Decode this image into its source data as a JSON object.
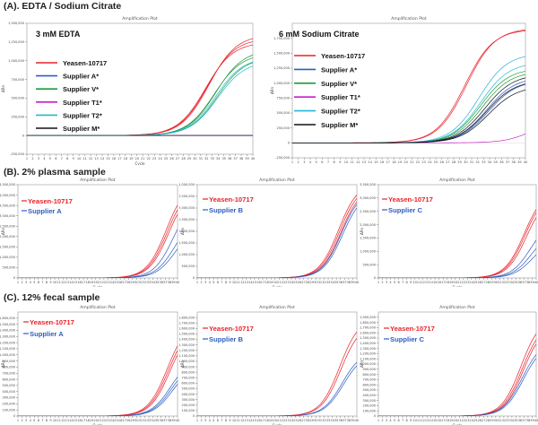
{
  "sections": {
    "a": "(A). EDTA / Sodium Citrate",
    "b": "(B). 2% plasma sample",
    "c": "(C). 12% fecal sample"
  },
  "chart_data": [
    {
      "id": "p1",
      "type": "line",
      "title": "Amplification Plot",
      "condition": "3 mM EDTA",
      "xlabel": "Cycle",
      "ylabel": "ΔRn",
      "xlim": [
        1,
        40
      ],
      "ylim": [
        -250000,
        1500000
      ],
      "xticks": [
        1,
        2,
        3,
        4,
        5,
        6,
        7,
        8,
        9,
        10,
        11,
        12,
        13,
        14,
        15,
        16,
        17,
        18,
        19,
        20,
        21,
        22,
        23,
        24,
        25,
        26,
        27,
        28,
        29,
        30,
        31,
        32,
        33,
        34,
        35,
        36,
        37,
        38,
        39,
        40
      ],
      "yticks": [
        -250000,
        0,
        250000,
        500000,
        750000,
        1000000,
        1250000,
        1500000
      ],
      "ytick_labels": [
        "-250,000",
        "0",
        "250,000",
        "500,000",
        "750,000",
        "1,000,000",
        "1,250,000",
        "1,500,000"
      ],
      "legend": "top-left",
      "series": [
        {
          "name": "Yeasen-10717",
          "color": "#e8212a",
          "plateaus": [
            1250000,
            1300000,
            1350000
          ],
          "ct": 27.8
        },
        {
          "name": "Supplier A*",
          "color": "#2e5dbf",
          "plateaus": [
            0
          ],
          "ct": 45
        },
        {
          "name": "Supplier V*",
          "color": "#1e9a3c",
          "plateaus": [
            1100000,
            1150000,
            1050000
          ],
          "ct": 29.3
        },
        {
          "name": "Supplier T1*",
          "color": "#c21fc6",
          "plateaus": [
            0
          ],
          "ct": 45
        },
        {
          "name": "Supplier T2*",
          "color": "#25b7d3",
          "plateaus": [
            1050000,
            1000000
          ],
          "ct": 29.6
        },
        {
          "name": "Supplier  M*",
          "color": "#111111",
          "plateaus": [
            0
          ],
          "ct": 45
        }
      ]
    },
    {
      "id": "p2",
      "type": "line",
      "title": "Amplification Plot",
      "condition": "6 mM  Sodium Citrate",
      "xlabel": "Cycle",
      "ylabel": "ΔRn",
      "xlim": [
        1,
        40
      ],
      "ylim": [
        -250000,
        2000000
      ],
      "xticks": [
        1,
        2,
        3,
        4,
        5,
        6,
        7,
        8,
        9,
        10,
        11,
        12,
        13,
        14,
        15,
        16,
        17,
        18,
        19,
        20,
        21,
        22,
        23,
        24,
        25,
        26,
        27,
        28,
        29,
        30,
        31,
        32,
        33,
        34,
        35,
        36,
        37,
        38,
        39,
        40
      ],
      "yticks": [
        -250000,
        0,
        250000,
        500000,
        750000,
        1000000,
        1250000,
        1500000,
        1750000
      ],
      "ytick_labels": [
        "-250,000",
        "0",
        "250,000",
        "500,000",
        "750,000",
        "1,000,000",
        "1,250,000",
        "1,500,000",
        "1,750,000"
      ],
      "legend": "top-left",
      "series": [
        {
          "name": "Yeasen-10717",
          "color": "#e8212a",
          "plateaus": [
            1900000,
            1920000
          ],
          "ct": 25.8
        },
        {
          "name": "Supplier A*",
          "color": "#2e5dbf",
          "plateaus": [
            1100000,
            1050000
          ],
          "ct": 29.5
        },
        {
          "name": "Supplier V*",
          "color": "#1e9a3c",
          "plateaus": [
            1250000,
            1200000
          ],
          "ct": 28.5
        },
        {
          "name": "Supplier T1*",
          "color": "#c21fc6",
          "plateaus": [
            500000
          ],
          "ct": 38
        },
        {
          "name": "Supplier T2*",
          "color": "#25b7d3",
          "plateaus": [
            1500000,
            1350000
          ],
          "ct": 28.2
        },
        {
          "name": "Supplier  M*",
          "color": "#111111",
          "plateaus": [
            1150000,
            1050000,
            950000
          ],
          "ct": 29.2
        }
      ]
    },
    {
      "id": "p3",
      "type": "line",
      "title": "Amplification Plot",
      "xlabel": "Cycle",
      "ylabel": "ΔRn",
      "xlim": [
        1,
        40
      ],
      "ylim": [
        0,
        4500000
      ],
      "xticks": [
        1,
        2,
        3,
        4,
        5,
        6,
        7,
        8,
        9,
        10,
        11,
        12,
        13,
        14,
        15,
        16,
        17,
        18,
        19,
        20,
        21,
        22,
        23,
        24,
        25,
        26,
        27,
        28,
        29,
        30,
        31,
        32,
        33,
        34,
        35,
        36,
        37,
        38,
        39,
        40
      ],
      "yticks": [
        0,
        500000,
        1000000,
        1500000,
        2000000,
        2500000,
        3000000,
        3500000,
        4000000,
        4500000
      ],
      "ytick_labels": [
        "0",
        "500,000",
        "1,000,000",
        "1,500,000",
        "2,000,000",
        "2,500,000",
        "3,000,000",
        "3,500,000",
        "4,000,000",
        "4,500,000"
      ],
      "legend": "top-left",
      "series": [
        {
          "name": "Yeasen-10717",
          "color": "#e8212a",
          "plateaus": [
            4600000,
            4450000,
            4300000
          ],
          "ct": 33.2
        },
        {
          "name": "Supplier A",
          "color": "#2e5dbf",
          "plateaus": [
            3900000,
            3000000,
            2600000
          ],
          "ct": 35.0
        }
      ]
    },
    {
      "id": "p4",
      "type": "line",
      "title": "Amplification Plot",
      "xlabel": "Cycle",
      "ylabel": "ΔRn",
      "xlim": [
        1,
        40
      ],
      "ylim": [
        0,
        4000000
      ],
      "xticks": [
        1,
        2,
        3,
        4,
        5,
        6,
        7,
        8,
        9,
        10,
        11,
        12,
        13,
        14,
        15,
        16,
        17,
        18,
        19,
        20,
        21,
        22,
        23,
        24,
        25,
        26,
        27,
        28,
        29,
        30,
        31,
        32,
        33,
        34,
        35,
        36,
        37,
        38,
        39,
        40
      ],
      "yticks": [
        0,
        500000,
        1000000,
        1500000,
        2000000,
        2500000,
        3000000,
        3500000,
        4000000
      ],
      "ytick_labels": [
        "0",
        "500,000",
        "1,000,000",
        "1,500,000",
        "2,000,000",
        "2,500,000",
        "3,000,000",
        "3,500,000",
        "4,000,000"
      ],
      "legend": "top-left",
      "series": [
        {
          "name": "Yeasen-10717",
          "color": "#e8212a",
          "plateaus": [
            4100000,
            4000000,
            3900000
          ],
          "ct": 31.5
        },
        {
          "name": "Supplier B",
          "color": "#2e5dbf",
          "plateaus": [
            3800000,
            3700000
          ],
          "ct": 32.2
        }
      ]
    },
    {
      "id": "p5",
      "type": "line",
      "title": "Amplification Plot",
      "xlabel": "Cycle",
      "ylabel": "ΔRn",
      "xlim": [
        1,
        40
      ],
      "ylim": [
        0,
        3500000
      ],
      "xticks": [
        1,
        2,
        3,
        4,
        5,
        6,
        7,
        8,
        9,
        10,
        11,
        12,
        13,
        14,
        15,
        16,
        17,
        18,
        19,
        20,
        21,
        22,
        23,
        24,
        25,
        26,
        27,
        28,
        29,
        30,
        31,
        32,
        33,
        34,
        35,
        36,
        37,
        38,
        39,
        40
      ],
      "yticks": [
        0,
        500000,
        1000000,
        1500000,
        2000000,
        2500000,
        3000000,
        3500000
      ],
      "ytick_labels": [
        "0",
        "500,000",
        "1,000,000",
        "1,500,000",
        "2,000,000",
        "2,500,000",
        "3,000,000",
        "3,500,000"
      ],
      "legend": "top-left",
      "series": [
        {
          "name": "Yeasen-10717",
          "color": "#e8212a",
          "plateaus": [
            3300000,
            3250000,
            3100000
          ],
          "ct": 33.0
        },
        {
          "name": "Supplier C",
          "color": "#2e5dbf",
          "plateaus": [
            2200000,
            1800000,
            1500000
          ],
          "ct": 34.6
        }
      ]
    },
    {
      "id": "p6",
      "type": "line",
      "title": "Amplification Plot",
      "xlabel": "Cycle",
      "ylabel": "ΔRn",
      "xlim": [
        1,
        40
      ],
      "ylim": [
        0,
        1700000
      ],
      "xticks": [
        1,
        2,
        3,
        4,
        5,
        6,
        7,
        8,
        9,
        10,
        11,
        12,
        13,
        14,
        15,
        16,
        17,
        18,
        19,
        20,
        21,
        22,
        23,
        24,
        25,
        26,
        27,
        28,
        29,
        30,
        31,
        32,
        33,
        34,
        35,
        36,
        37,
        38,
        39,
        40
      ],
      "yticks": [
        0,
        100000,
        200000,
        300000,
        400000,
        500000,
        600000,
        700000,
        800000,
        900000,
        1000000,
        1100000,
        1200000,
        1300000,
        1400000,
        1500000,
        1600000
      ],
      "ytick_labels": [
        "0",
        "100,000",
        "200,000",
        "300,000",
        "400,000",
        "500,000",
        "600,000",
        "700,000",
        "800,000",
        "900,000",
        "1,000,000",
        "1,100,000",
        "1,200,000",
        "1,300,000",
        "1,400,000",
        "1,500,000",
        "1,600,000"
      ],
      "legend": "top-left",
      "series": [
        {
          "name": "Yeasen-10717",
          "color": "#e8212a",
          "plateaus": [
            1550000,
            1500000,
            1450000
          ],
          "ct": 33.5
        },
        {
          "name": "Supplier A",
          "color": "#2e5dbf",
          "plateaus": [
            950000,
            900000,
            850000
          ],
          "ct": 34.3
        }
      ]
    },
    {
      "id": "p7",
      "type": "line",
      "title": "Amplification Plot",
      "xlabel": "Cycle",
      "ylabel": "ΔRn",
      "xlim": [
        1,
        40
      ],
      "ylim": [
        0,
        1900000
      ],
      "xticks": [
        1,
        2,
        3,
        4,
        5,
        6,
        7,
        8,
        9,
        10,
        11,
        12,
        13,
        14,
        15,
        16,
        17,
        18,
        19,
        20,
        21,
        22,
        23,
        24,
        25,
        26,
        27,
        28,
        29,
        30,
        31,
        32,
        33,
        34,
        35,
        36,
        37,
        38,
        39,
        40
      ],
      "yticks": [
        0,
        100000,
        200000,
        300000,
        400000,
        500000,
        600000,
        700000,
        800000,
        900000,
        1000000,
        1100000,
        1200000,
        1300000,
        1400000,
        1500000,
        1600000,
        1700000,
        1800000
      ],
      "ytick_labels": [
        "0",
        "100,000",
        "200,000",
        "300,000",
        "400,000",
        "500,000",
        "600,000",
        "700,000",
        "800,000",
        "900,000",
        "1,000,000",
        "1,100,000",
        "1,200,000",
        "1,300,000",
        "1,400,000",
        "1,500,000",
        "1,600,000",
        "1,700,000",
        "1,800,000"
      ],
      "legend": "top-left",
      "series": [
        {
          "name": "Yeasen-10717",
          "color": "#e8212a",
          "plateaus": [
            1800000,
            1700000
          ],
          "ct": 31.8
        },
        {
          "name": "Supplier B",
          "color": "#2e5dbf",
          "plateaus": [
            1200000,
            1150000
          ],
          "ct": 32.4
        }
      ]
    },
    {
      "id": "p8",
      "type": "line",
      "title": "Amplification Plot",
      "xlabel": "Cycle",
      "ylabel": "ΔRn",
      "xlim": [
        1,
        40
      ],
      "ylim": [
        0,
        2000000
      ],
      "xticks": [
        1,
        2,
        3,
        4,
        5,
        6,
        7,
        8,
        9,
        10,
        11,
        12,
        13,
        14,
        15,
        16,
        17,
        18,
        19,
        20,
        21,
        22,
        23,
        24,
        25,
        26,
        27,
        28,
        29,
        30,
        31,
        32,
        33,
        34,
        35,
        36,
        37,
        38,
        39,
        40
      ],
      "yticks": [
        0,
        100000,
        200000,
        300000,
        400000,
        500000,
        600000,
        700000,
        800000,
        900000,
        1000000,
        1100000,
        1200000,
        1300000,
        1400000,
        1500000,
        1600000,
        1700000,
        1800000,
        1900000
      ],
      "ytick_labels": [
        "0",
        "100,000",
        "200,000",
        "300,000",
        "400,000",
        "500,000",
        "600,000",
        "700,000",
        "800,000",
        "900,000",
        "1,000,000",
        "1,100,000",
        "1,200,000",
        "1,300,000",
        "1,400,000",
        "1,500,000",
        "1,600,000",
        "1,700,000",
        "1,800,000",
        "1,900,000"
      ],
      "legend": "top-left",
      "series": [
        {
          "name": "Yeasen-10717",
          "color": "#e8212a",
          "plateaus": [
            1900000,
            1800000,
            1750000
          ],
          "ct": 32.2
        },
        {
          "name": "Supplier C",
          "color": "#2e5dbf",
          "plateaus": [
            1450000,
            1400000
          ],
          "ct": 32.5
        }
      ]
    }
  ]
}
